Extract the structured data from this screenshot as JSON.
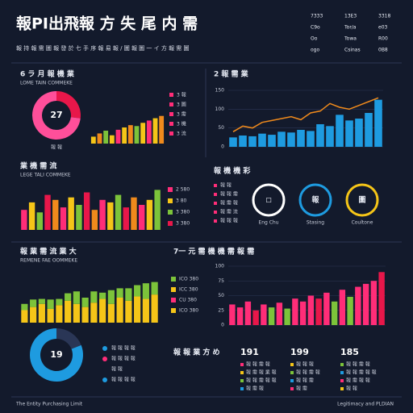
{
  "header": {
    "title": "報PI出飛報 方 失 尾 内 需",
    "subtitle": "報 持 報 需 圖 報 發 於 七 手 序 報 易 報 / 圖 報 圖 一 イ 方 報 需 圖"
  },
  "top_legend": [
    [
      "7333",
      "13E3",
      "3318"
    ],
    [
      "C9o",
      "Tor/a",
      "e03"
    ],
    [
      "Oo",
      "Towa",
      "R00"
    ],
    [
      "ogo",
      "Csinas",
      "0B8"
    ]
  ],
  "panels": {
    "p1": {
      "title": "6 ラ 月 報 機 業",
      "subtitle": "LOME TAIN COMMEKE",
      "legend": [
        "3 報",
        "3 圖",
        "3 需",
        "3 機",
        "3 流"
      ],
      "caption": "報 報"
    },
    "p2": {
      "title": "2 報 需 業"
    },
    "p3": {
      "title": "業 機 需 流",
      "subtitle": "LEGE TALI COMMEKE",
      "legend": [
        "2 580",
        "3 80",
        "3 380",
        "3 380"
      ]
    },
    "p4": {
      "title": "報 機 機 彩",
      "legend": [
        "報 報",
        "報 報 需",
        "報 需 報",
        "報 需 流",
        "報 報 報"
      ],
      "icons": [
        {
          "glyph": "◻",
          "label": "Eng Chu"
        },
        {
          "glyph": "報",
          "label": "Stasing"
        },
        {
          "glyph": "圖",
          "label": "Coultone"
        }
      ]
    },
    "p5": {
      "title": "報 業 需 流 業 大",
      "subtitle": "REMENE FAE OOMMEKE",
      "legend": [
        "ICO 380",
        "ICC 380",
        "CU 380",
        "ICO 380"
      ]
    },
    "p6": {
      "title": "7一 元 需 機 機 需 報 需"
    },
    "p7": {
      "legend": [
        "報 報 報 報",
        "報 報 報 報",
        "報 報",
        "報 報 報 報"
      ]
    },
    "p8": {
      "title": "報 報 業 方 め",
      "stats": [
        {
          "value": "191",
          "items": [
            "報 報 需 報",
            "報 需 報 業 報",
            "報 報 需 報 報",
            "報 需 報"
          ]
        },
        {
          "value": "199",
          "items": [
            "報 報 報",
            "報 報 需 報",
            "報 報 需",
            "報 需"
          ]
        },
        {
          "value": "185",
          "items": [
            "報 報 需 報",
            "報 報 需 報 報",
            "報 需 報 報",
            "報 報"
          ]
        }
      ]
    }
  },
  "footer": {
    "left": "The Entity Purchasing Limit",
    "right": "Legitimacy and PLDIAN"
  },
  "chart_data": [
    {
      "type": "pie",
      "values": [
        27,
        73
      ],
      "colors": [
        "#e8174a",
        "#ff4f9a"
      ]
    },
    {
      "type": "bar",
      "values": [
        15,
        22,
        28,
        18,
        30,
        35,
        40,
        38,
        45,
        50,
        55,
        60
      ],
      "colors": [
        "#f5c518",
        "#f08a1c",
        "#7cc33a",
        "#f5c518",
        "#ff2d78"
      ],
      "ylim": [
        0,
        70
      ]
    },
    {
      "type": "combo",
      "series": [
        {
          "kind": "bar",
          "color": "#1e9be0",
          "values": [
            25,
            30,
            28,
            35,
            32,
            40,
            38,
            45,
            42,
            60,
            55,
            85,
            70,
            75,
            90,
            125
          ]
        },
        {
          "kind": "line",
          "color": "#f08a1c",
          "values": [
            40,
            55,
            50,
            65,
            70,
            75,
            80,
            72,
            90,
            95,
            115,
            105,
            100,
            110,
            120,
            130
          ]
        }
      ],
      "ylim": [
        0,
        150
      ],
      "yticks": [
        0,
        50,
        100,
        150
      ]
    },
    {
      "type": "bar",
      "values": [
        40,
        55,
        35,
        70,
        60,
        45,
        65,
        50,
        75,
        40,
        60,
        55,
        70,
        45,
        65,
        50,
        60,
        80
      ],
      "colors": [
        "#ff2d78",
        "#f5c518",
        "#7cc33a",
        "#e8174a",
        "#f08a1c"
      ],
      "ylim": [
        0,
        100
      ]
    },
    {
      "type": "stacked",
      "series": [
        {
          "color": "#f5c518",
          "values": [
            20,
            25,
            30,
            22,
            28,
            35,
            30,
            25,
            32,
            38,
            30,
            40,
            35,
            42,
            38,
            45
          ]
        },
        {
          "color": "#7cc33a",
          "values": [
            10,
            12,
            8,
            15,
            10,
            12,
            20,
            15,
            18,
            10,
            22,
            15,
            20,
            18,
            25,
            20
          ]
        }
      ],
      "ylim": [
        0,
        80
      ]
    },
    {
      "type": "bar",
      "values": [
        35,
        30,
        40,
        25,
        35,
        30,
        38,
        28,
        45,
        40,
        50,
        45,
        55,
        40,
        60,
        48,
        65,
        70,
        75,
        90
      ],
      "colors": [
        "#ff2d78",
        "#ff2d78",
        "#ff2d78",
        "#e8174a",
        "#ff2d78",
        "#7cc33a",
        "#ff2d78",
        "#7cc33a"
      ],
      "ylim": [
        0,
        100
      ],
      "yticks": [
        0,
        25,
        50,
        75,
        100
      ]
    },
    {
      "type": "pie",
      "values": [
        19,
        81
      ],
      "colors": [
        "#2a3656",
        "#1e9be0"
      ]
    }
  ]
}
